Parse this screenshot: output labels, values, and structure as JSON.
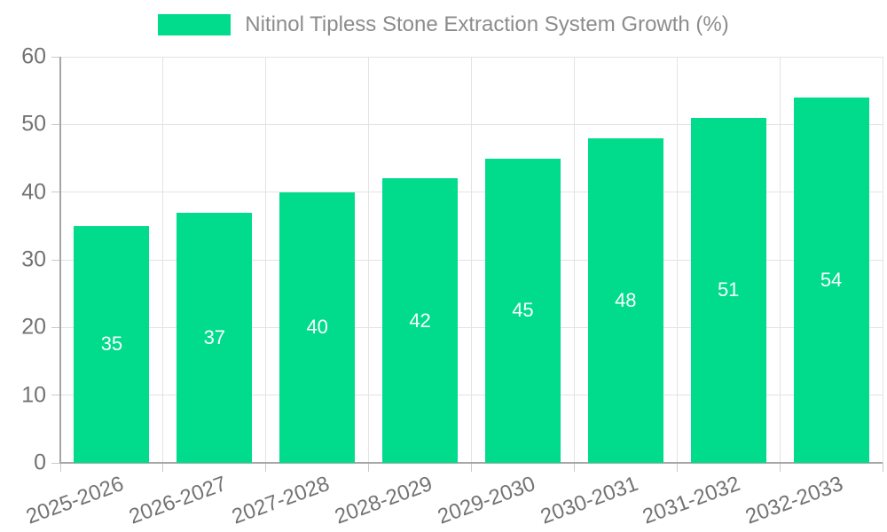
{
  "chart_data": {
    "type": "bar",
    "title": "Nitinol Tipless Stone Extraction System Growth (%)",
    "categories": [
      "2025-2026",
      "2026-2027",
      "2027-2028",
      "2028-2029",
      "2029-2030",
      "2030-2031",
      "2031-2032",
      "2032-2033"
    ],
    "values": [
      35,
      37,
      40,
      42,
      45,
      48,
      51,
      54
    ],
    "xlabel": "",
    "ylabel": "",
    "ylim": [
      0,
      60
    ],
    "ytick_step": 10,
    "ytick_labels": [
      "0",
      "10",
      "20",
      "30",
      "40",
      "50",
      "60"
    ],
    "grid": true,
    "legend_position": "top-center",
    "value_labels_shown": true
  },
  "colors": {
    "bar": "#00DC8C",
    "background": "#FFFFFF",
    "grid": "#E3E3E3",
    "axis": "#A6A6A6",
    "tick": "#C9C9C9",
    "tick_label": "#737373",
    "legend_text": "#8C8C8C",
    "value_label": "#FFFFFF"
  }
}
